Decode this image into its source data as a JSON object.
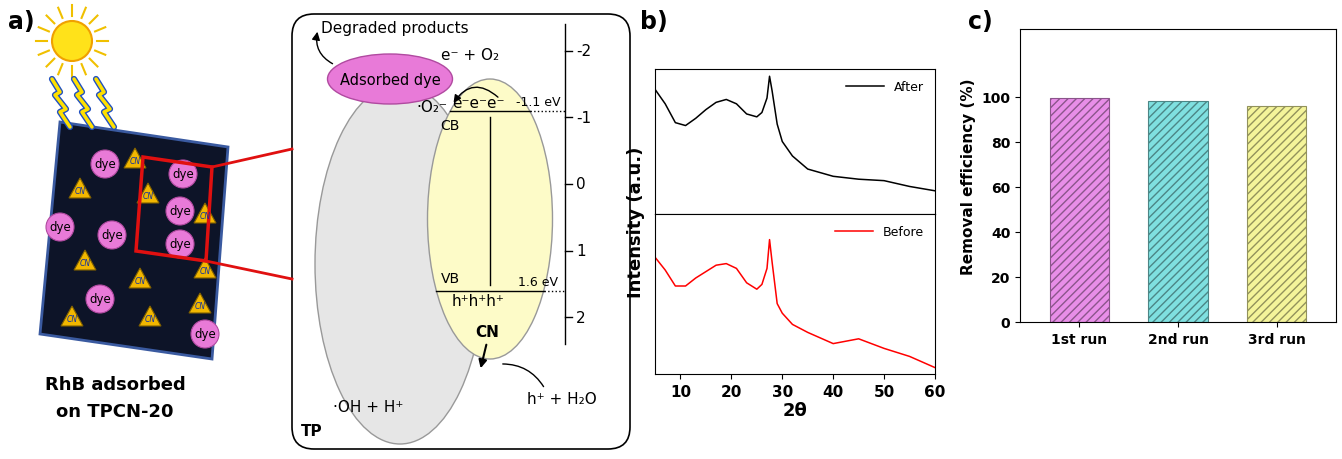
{
  "panel_labels": [
    "a)",
    "b)",
    "c)"
  ],
  "diagram": {
    "caption": [
      "RhB adsorbed",
      "on TPCN-20"
    ],
    "dye_label": "dye",
    "cn_tile_label": "CN",
    "degraded_products": "Degraded products",
    "adsorbed_dye": "Adsorbed dye",
    "electron_reaction": "e⁻ + O₂",
    "superoxide": "·O₂⁻",
    "electrons": "e⁻e⁻e⁻",
    "holes": "h⁺h⁺h⁺",
    "cb_label": "CB",
    "vb_label": "VB",
    "cn_label": "CN",
    "tp_label": "TP",
    "hydroxyl": "·OH + H⁺",
    "hole_reaction": "h⁺ + H₂O",
    "cb_level": {
      "value": -1.1,
      "label": "-1.1 eV"
    },
    "vb_level": {
      "value": 1.6,
      "label": "1.6 eV"
    },
    "energy_scale": {
      "lim": [
        -2.4,
        2.4
      ],
      "ticks": [
        -2,
        -1,
        0,
        1,
        2
      ]
    }
  },
  "chart_data": [
    {
      "type": "line",
      "x": [
        5,
        7,
        9,
        11,
        13,
        15,
        17,
        19,
        21,
        23,
        25,
        26,
        27,
        27.5,
        28,
        29,
        30,
        32,
        35,
        40,
        45,
        50,
        55,
        60
      ],
      "series": [
        {
          "name": "After",
          "color": "#000000",
          "values": [
            86,
            76,
            63,
            61,
            66,
            72,
            77,
            79,
            76,
            69,
            67,
            70,
            80,
            95,
            85,
            62,
            50,
            40,
            31,
            26,
            24,
            23,
            19,
            16
          ]
        }
      ],
      "xlim": [
        5,
        60
      ],
      "xticks": [],
      "ylim": [
        0,
        100
      ],
      "yticks": [],
      "tick_labels": false,
      "legend": "upper right"
    },
    {
      "type": "line",
      "x": [
        5,
        7,
        9,
        11,
        13,
        15,
        17,
        19,
        21,
        23,
        25,
        26,
        27,
        27.5,
        28,
        29,
        30,
        32,
        35,
        40,
        45,
        50,
        55,
        60
      ],
      "series": [
        {
          "name": "Before",
          "color": "#ff0000",
          "values": [
            73,
            65,
            55,
            55,
            60,
            64,
            68,
            69,
            66,
            57,
            53,
            56,
            66,
            84,
            70,
            44,
            38,
            31,
            26,
            19,
            22,
            16,
            11,
            4
          ]
        }
      ],
      "x_label": "2θ",
      "y_label": "Intensity (a.u.)",
      "xlim": [
        5,
        60
      ],
      "xticks": [
        10,
        20,
        30,
        40,
        50,
        60
      ],
      "ylim": [
        0,
        100
      ],
      "yticks": [],
      "tick_labels": "x",
      "legend": "upper right"
    },
    {
      "type": "bar",
      "categories": [
        "1st run",
        "2nd run",
        "3rd run"
      ],
      "values": [
        99.5,
        98,
        96
      ],
      "colors": [
        "#e88ee8",
        "#7fe0e0",
        "#f4f49a"
      ],
      "y_label": "Removal efficiency (%)",
      "ylim": [
        0,
        130
      ],
      "yticks": [
        0,
        20,
        40,
        60,
        80,
        100
      ]
    }
  ]
}
